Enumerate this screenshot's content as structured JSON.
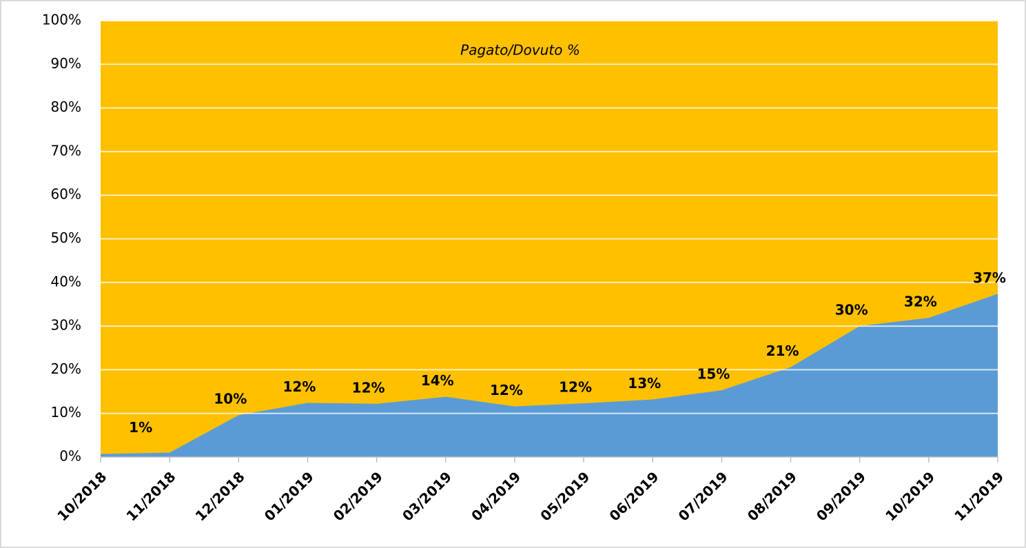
{
  "chart_data": {
    "type": "area",
    "title": "Pagato/Dovuto %",
    "categories": [
      "10/2018",
      "11/2018",
      "12/2018",
      "01/2019",
      "02/2019",
      "03/2019",
      "04/2019",
      "05/2019",
      "06/2019",
      "07/2019",
      "08/2019",
      "09/2019",
      "10/2019",
      "11/2019"
    ],
    "series": [
      {
        "color": "#5b9bd5",
        "values": [
          0.7,
          1,
          9.6,
          12.4,
          12.2,
          13.8,
          11.6,
          12.3,
          13.2,
          15.3,
          20.6,
          30,
          31.9,
          37.4
        ],
        "value_labels": [
          null,
          "1%",
          "10%",
          "12%",
          "12%",
          "14%",
          "12%",
          "12%",
          "13%",
          "15%",
          "21%",
          "30%",
          "32%",
          "37%"
        ]
      }
    ],
    "background_color": "#ffc000",
    "ylim": [
      0,
      100
    ],
    "yticks": [
      {
        "value": 0,
        "label": "0%"
      },
      {
        "value": 10,
        "label": "10%"
      },
      {
        "value": 20,
        "label": "20%"
      },
      {
        "value": 30,
        "label": "30%"
      },
      {
        "value": 40,
        "label": "40%"
      },
      {
        "value": 50,
        "label": "50%"
      },
      {
        "value": 60,
        "label": "60%"
      },
      {
        "value": 70,
        "label": "70%"
      },
      {
        "value": 80,
        "label": "80%"
      },
      {
        "value": 90,
        "label": "90%"
      },
      {
        "value": 100,
        "label": "100%"
      }
    ],
    "grid": true
  }
}
